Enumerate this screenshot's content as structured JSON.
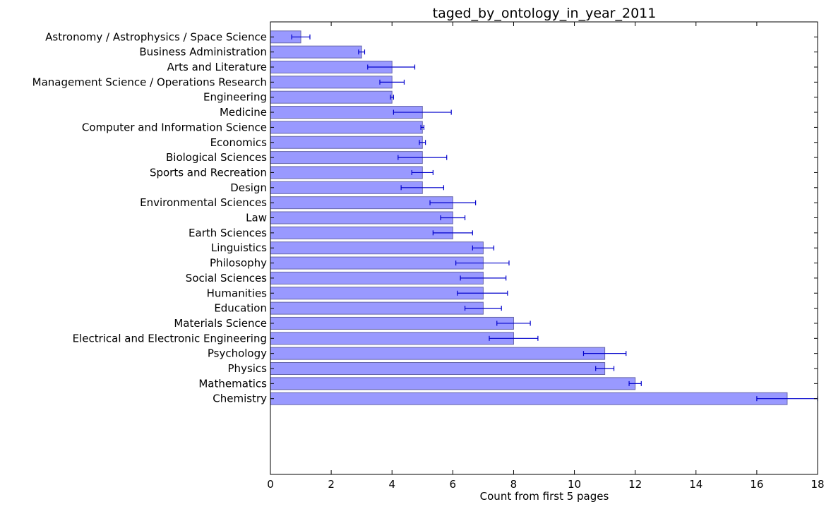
{
  "chart_data": {
    "type": "bar",
    "orientation": "horizontal",
    "title": "taged_by_ontology_in_year_2011",
    "xlabel": "Count from first 5 pages",
    "ylabel": "",
    "xlim": [
      0,
      18
    ],
    "xticks": [
      "0",
      "2",
      "4",
      "6",
      "8",
      "10",
      "12",
      "14",
      "16",
      "18"
    ],
    "grid": false,
    "bar_color": "#9999ff",
    "bar_edge_color": "#6666aa",
    "error_bar_color": "#0000cc",
    "categories": [
      "Astronomy / Astrophysics / Space Science",
      "Business Administration",
      "Arts and Literature",
      "Management Science / Operations Research",
      "Engineering",
      "Medicine",
      "Computer and Information Science",
      "Economics",
      "Biological Sciences",
      "Sports and Recreation",
      "Design",
      "Environmental Sciences",
      "Law",
      "Earth Sciences",
      "Linguistics",
      "Philosophy",
      "Social Sciences",
      "Humanities",
      "Education",
      "Materials Science",
      "Electrical and Electronic Engineering",
      "Psychology",
      "Physics",
      "Mathematics",
      "Chemistry"
    ],
    "values": [
      1,
      3,
      4,
      4,
      4,
      5,
      5,
      5,
      5,
      5,
      5,
      6,
      6,
      6,
      7,
      7,
      7,
      7,
      7,
      8,
      8,
      11,
      11,
      12,
      17
    ],
    "error_low": [
      0.7,
      2.9,
      3.2,
      3.6,
      3.95,
      4.05,
      4.95,
      4.9,
      4.2,
      4.65,
      4.3,
      5.25,
      5.6,
      5.35,
      6.65,
      6.1,
      6.25,
      6.15,
      6.4,
      7.45,
      7.2,
      10.3,
      10.7,
      11.8,
      16.0
    ],
    "error_high": [
      1.3,
      3.1,
      4.75,
      4.4,
      4.05,
      5.95,
      5.05,
      5.1,
      5.8,
      5.35,
      5.7,
      6.75,
      6.4,
      6.65,
      7.35,
      7.85,
      7.75,
      7.8,
      7.6,
      8.55,
      8.8,
      11.7,
      11.3,
      12.2,
      18.0
    ]
  }
}
